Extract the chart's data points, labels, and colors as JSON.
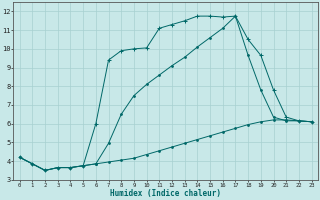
{
  "xlabel": "Humidex (Indice chaleur)",
  "bg_color": "#c8e8e8",
  "grid_color": "#a8d0d0",
  "line_color": "#006868",
  "xlim": [
    -0.5,
    23.5
  ],
  "ylim": [
    3,
    12.5
  ],
  "xtick_vals": [
    0,
    1,
    2,
    3,
    4,
    5,
    6,
    7,
    8,
    9,
    10,
    11,
    12,
    13,
    14,
    15,
    16,
    17,
    18,
    19,
    20,
    21,
    22,
    23
  ],
  "ytick_vals": [
    3,
    4,
    5,
    6,
    7,
    8,
    9,
    10,
    11,
    12
  ],
  "line1_x": [
    0,
    1,
    2,
    3,
    4,
    5,
    6,
    7,
    8,
    9,
    10,
    11,
    12,
    13,
    14,
    15,
    16,
    17,
    18,
    19,
    20,
    21,
    22,
    23
  ],
  "line1_y": [
    4.2,
    3.85,
    3.5,
    3.65,
    3.65,
    3.75,
    3.85,
    3.95,
    4.05,
    4.15,
    4.35,
    4.55,
    4.75,
    4.95,
    5.15,
    5.35,
    5.55,
    5.75,
    5.95,
    6.1,
    6.2,
    6.2,
    6.15,
    6.1
  ],
  "line2_x": [
    0,
    1,
    2,
    3,
    4,
    5,
    6,
    7,
    8,
    9,
    10,
    11,
    12,
    13,
    14,
    15,
    16,
    17,
    18,
    19,
    20,
    21,
    22,
    23
  ],
  "line2_y": [
    4.2,
    3.85,
    3.5,
    3.65,
    3.65,
    3.75,
    6.0,
    9.4,
    9.9,
    10.0,
    10.05,
    11.1,
    11.3,
    11.5,
    11.75,
    11.75,
    11.7,
    11.75,
    10.5,
    9.65,
    7.8,
    6.35,
    6.15,
    6.1
  ],
  "line3_x": [
    0,
    1,
    2,
    3,
    4,
    5,
    6,
    7,
    8,
    9,
    10,
    11,
    12,
    13,
    14,
    15,
    16,
    17,
    18,
    19,
    20,
    21,
    22,
    23
  ],
  "line3_y": [
    4.2,
    3.85,
    3.5,
    3.65,
    3.65,
    3.75,
    3.85,
    4.95,
    6.5,
    7.5,
    8.1,
    8.6,
    9.1,
    9.55,
    10.1,
    10.6,
    11.1,
    11.75,
    9.65,
    7.8,
    6.35,
    6.15,
    6.15,
    6.1
  ]
}
